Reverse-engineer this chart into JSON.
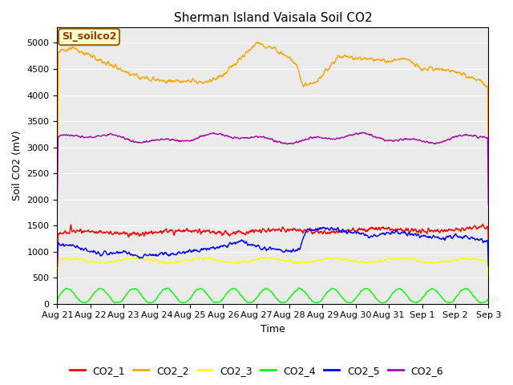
{
  "title": "Sherman Island Vaisala Soil CO2",
  "ylabel": "Soil CO2 (mV)",
  "xlabel": "Time",
  "annotation_text": "SI_soilco2",
  "xlim_days": [
    0,
    13
  ],
  "ylim": [
    0,
    5300
  ],
  "yticks": [
    0,
    500,
    1000,
    1500,
    2000,
    2500,
    3000,
    3500,
    4000,
    4500,
    5000
  ],
  "xtick_labels": [
    "Aug 21",
    "Aug 22",
    "Aug 23",
    "Aug 24",
    "Aug 25",
    "Aug 26",
    "Aug 27",
    "Aug 28",
    "Aug 29",
    "Aug 30",
    "Aug 31",
    "Sep 1",
    "Sep 2",
    "Sep 3"
  ],
  "colors": {
    "CO2_1": "#ff0000",
    "CO2_2": "#ffa500",
    "CO2_3": "#ffff00",
    "CO2_4": "#00ff00",
    "CO2_5": "#0000ff",
    "CO2_6": "#aa00aa"
  },
  "plot_bg_color": "#ebebeb",
  "fig_bg_color": "#ffffff",
  "title_fontsize": 11,
  "axis_label_fontsize": 9,
  "tick_fontsize": 8,
  "legend_fontsize": 9,
  "annotation_fontsize": 9,
  "linewidth": 1.0,
  "grid_color": "#ffffff",
  "annotation_bg": "#ffffcc",
  "annotation_edge": "#996600",
  "annotation_text_color": "#993300"
}
